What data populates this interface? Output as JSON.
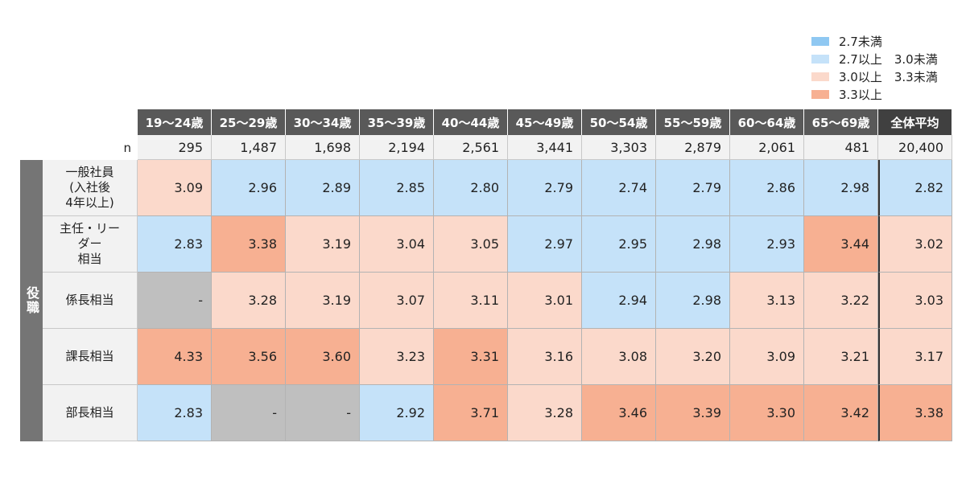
{
  "chart_data": {
    "type": "heatmap",
    "category_label": "役職",
    "n_label": "n",
    "columns": [
      "19～24歳",
      "25～29歳",
      "30～34歳",
      "35～39歳",
      "40～44歳",
      "45～49歳",
      "50～54歳",
      "55～59歳",
      "60～64歳",
      "65～69歳",
      "全体平均"
    ],
    "n": [
      "295",
      "1,487",
      "1,698",
      "2,194",
      "2,561",
      "3,441",
      "3,303",
      "2,879",
      "2,061",
      "481",
      "20,400"
    ],
    "rows": [
      {
        "label": "一般社員\n(入社後\n4年以上)",
        "values": [
          "3.09",
          "2.96",
          "2.89",
          "2.85",
          "2.80",
          "2.79",
          "2.74",
          "2.79",
          "2.86",
          "2.98",
          "2.82"
        ]
      },
      {
        "label": "主任・リー\nダー\n相当",
        "values": [
          "2.83",
          "3.38",
          "3.19",
          "3.04",
          "3.05",
          "2.97",
          "2.95",
          "2.98",
          "2.93",
          "3.44",
          "3.02"
        ]
      },
      {
        "label": "係長相当",
        "values": [
          "-",
          "3.28",
          "3.19",
          "3.07",
          "3.11",
          "3.01",
          "2.94",
          "2.98",
          "3.13",
          "3.22",
          "3.03"
        ]
      },
      {
        "label": "課長相当",
        "values": [
          "4.33",
          "3.56",
          "3.60",
          "3.23",
          "3.31",
          "3.16",
          "3.08",
          "3.20",
          "3.09",
          "3.21",
          "3.17"
        ]
      },
      {
        "label": "部長相当",
        "values": [
          "2.83",
          "-",
          "-",
          "2.92",
          "3.71",
          "3.28",
          "3.46",
          "3.39",
          "3.30",
          "3.42",
          "3.38"
        ]
      }
    ],
    "legend": [
      {
        "label": "2.7未満",
        "color": "#8fc8f2"
      },
      {
        "label": "2.7以上　3.0未満",
        "color": "#c5e2f9"
      },
      {
        "label": "3.0以上　3.3未満",
        "color": "#fbd9cb"
      },
      {
        "label": "3.3以上",
        "color": "#f7b092"
      }
    ],
    "missing_color": "#bfbfbf",
    "thresholds": [
      2.7,
      3.0,
      3.3
    ]
  }
}
